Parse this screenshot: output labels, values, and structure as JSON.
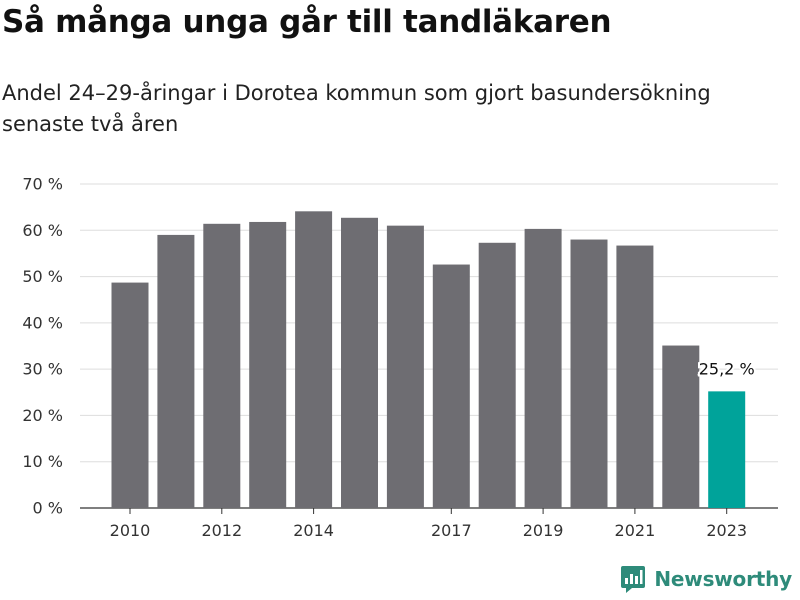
{
  "chart_data": {
    "type": "bar",
    "title": "Så många unga går till tandläkaren",
    "subtitle": "Andel 24–29-åringar i Dorotea kommun som gjort basundersökning senaste två åren",
    "categories": [
      2010,
      2011,
      2012,
      2013,
      2014,
      2015,
      2016,
      2017,
      2018,
      2019,
      2020,
      2021,
      2022,
      2023
    ],
    "x_tick_labels": [
      "2010",
      "2012",
      "2014",
      "2017",
      "2019",
      "2021",
      "2023"
    ],
    "values": [
      48.7,
      59.0,
      61.4,
      61.8,
      64.1,
      62.7,
      61.0,
      52.6,
      57.3,
      60.3,
      58.0,
      56.7,
      35.1,
      25.2
    ],
    "ylim": [
      0,
      70
    ],
    "y_ticks": [
      "0 %",
      "10 %",
      "20 %",
      "30 %",
      "40 %",
      "50 %",
      "60 %",
      "70 %"
    ],
    "y_tick_values": [
      0,
      10,
      20,
      30,
      40,
      50,
      60,
      70
    ],
    "highlight_index": 13,
    "highlight_label": "25,2 %",
    "colors": {
      "bar": "#6e6d72",
      "highlight": "#00a39a",
      "grid": "#dddddd"
    },
    "grid": true,
    "legend": "none"
  },
  "brand": {
    "name": "Newsworthy",
    "icon": "newsworthy-logo-icon",
    "color": "#2e8b7a"
  }
}
